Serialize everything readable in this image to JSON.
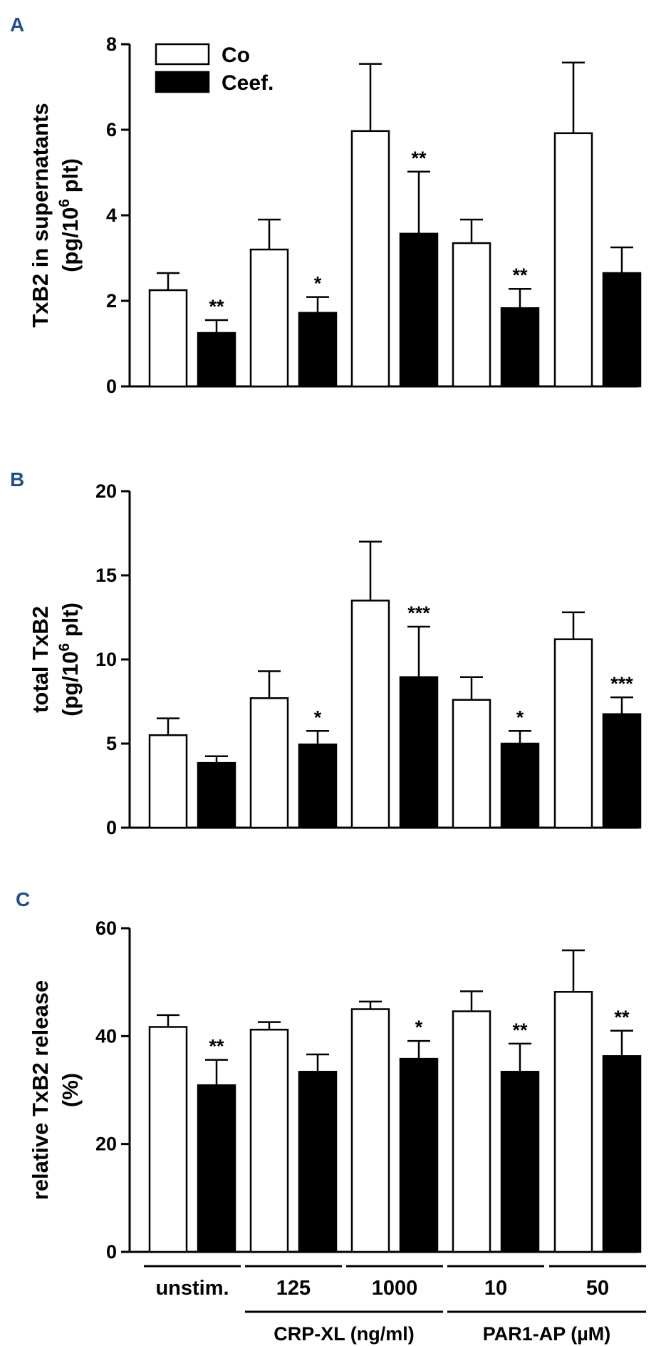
{
  "chart_data": [
    {
      "panel": "A",
      "type": "bar",
      "ylabel": "TxB2 in supernatants",
      "ylabel_unit_parts": [
        "(pg/10",
        "6",
        " plt)"
      ],
      "ylim": [
        0,
        8
      ],
      "yticks": [
        0,
        2,
        4,
        6,
        8
      ],
      "legend": {
        "placement": "top-left",
        "entries": [
          "Co",
          "Ceef."
        ]
      },
      "categories": [
        "unstim.",
        "125",
        "1000",
        "10",
        "50"
      ],
      "series": [
        {
          "name": "Co",
          "values": [
            2.25,
            3.2,
            5.97,
            3.35,
            5.92
          ],
          "errors": [
            0.4,
            0.7,
            1.57,
            0.55,
            1.65
          ]
        },
        {
          "name": "Ceef.",
          "values": [
            1.25,
            1.72,
            3.57,
            1.83,
            2.65
          ],
          "errors": [
            0.3,
            0.37,
            1.45,
            0.45,
            0.6
          ]
        }
      ],
      "significance": [
        "**",
        "*",
        "**",
        "**",
        ""
      ]
    },
    {
      "panel": "B",
      "type": "bar",
      "ylabel": "total TxB2",
      "ylabel_unit_parts": [
        "(pg/10",
        "6",
        " plt)"
      ],
      "ylim": [
        0,
        20
      ],
      "yticks": [
        0,
        5,
        10,
        15,
        20
      ],
      "categories": [
        "unstim.",
        "125",
        "1000",
        "10",
        "50"
      ],
      "series": [
        {
          "name": "Co",
          "values": [
            5.5,
            7.7,
            13.5,
            7.6,
            11.2
          ],
          "errors": [
            1.0,
            1.6,
            3.5,
            1.35,
            1.6
          ]
        },
        {
          "name": "Ceef.",
          "values": [
            3.85,
            4.95,
            8.95,
            5.0,
            6.75
          ],
          "errors": [
            0.4,
            0.8,
            3.0,
            0.75,
            1.0
          ]
        }
      ],
      "significance": [
        "",
        "*",
        "***",
        "*",
        "***"
      ]
    },
    {
      "panel": "C",
      "type": "bar",
      "ylabel": "relative TxB2 release",
      "ylabel_unit_parts": [
        "(%)"
      ],
      "ylim": [
        0,
        60
      ],
      "yticks": [
        0,
        20,
        40,
        60
      ],
      "categories": [
        "unstim.",
        "125",
        "1000",
        "10",
        "50"
      ],
      "series": [
        {
          "name": "Co",
          "values": [
            41.7,
            41.2,
            45.0,
            44.6,
            48.2
          ],
          "errors": [
            2.2,
            1.4,
            1.4,
            3.7,
            7.7
          ]
        },
        {
          "name": "Ceef.",
          "values": [
            30.9,
            33.4,
            35.8,
            33.4,
            36.3
          ],
          "errors": [
            4.7,
            3.2,
            3.3,
            5.2,
            4.7
          ]
        }
      ],
      "significance": [
        "**",
        "",
        "*",
        "**",
        "**"
      ],
      "xgroups": [
        {
          "label": "CRP-XL (ng/ml)",
          "categories": [
            "125",
            "1000"
          ]
        },
        {
          "label": "PAR1-AP (µM)",
          "categories": [
            "10",
            "50"
          ]
        }
      ]
    }
  ]
}
